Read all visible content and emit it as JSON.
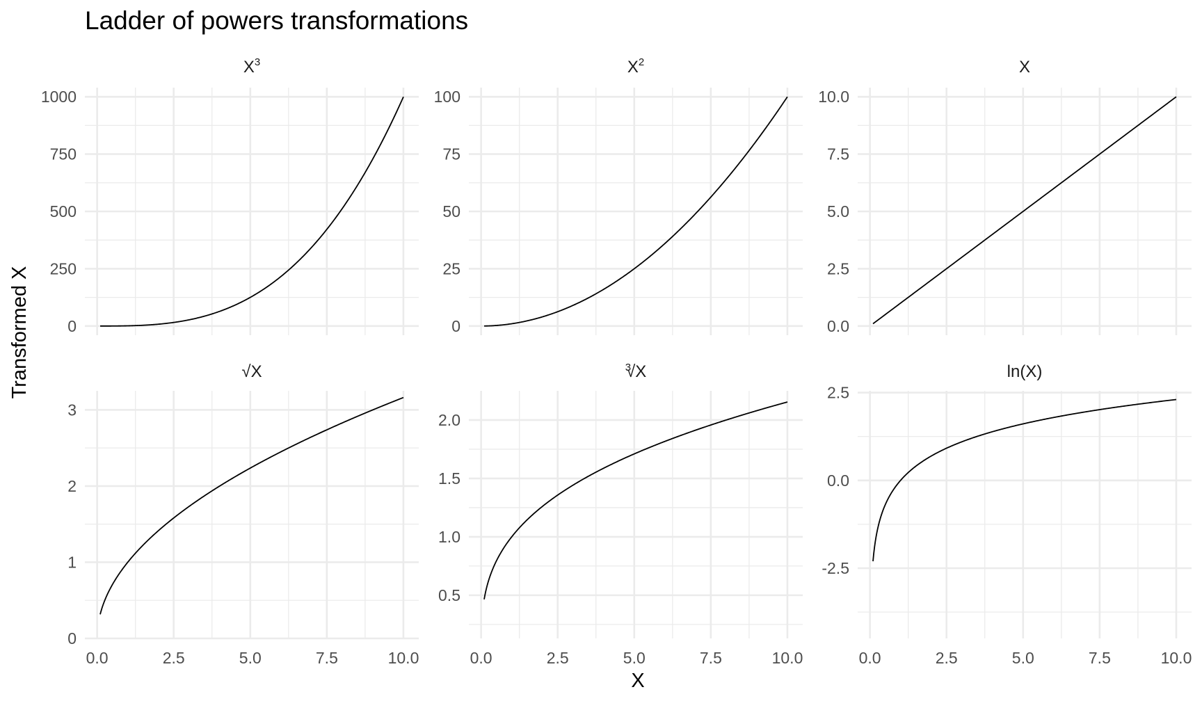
{
  "chart_data": {
    "type": "line",
    "title": "Ladder of powers transformations",
    "xlabel": "X",
    "ylabel": "Transformed X",
    "grid": true,
    "legend": "none",
    "line_color": "#000000",
    "x_range": [
      0.1,
      10
    ],
    "x_ticks": [
      0.0,
      2.5,
      5.0,
      7.5,
      10.0
    ],
    "x_tick_labels": [
      "0.0",
      "2.5",
      "5.0",
      "7.5",
      "10.0"
    ],
    "panels": [
      {
        "label": "X3",
        "label_main": "X",
        "label_sup": "3",
        "transform": "cube",
        "ylim": [
          -40,
          1040
        ],
        "yticks": [
          0,
          250,
          500,
          750,
          1000
        ],
        "ytick_labels": [
          "0",
          "250",
          "500",
          "750",
          "1000"
        ],
        "x": [
          0.1,
          1,
          2,
          3,
          4,
          5,
          6,
          7,
          8,
          9,
          10
        ],
        "y": [
          0.001,
          1,
          8,
          27,
          64,
          125,
          216,
          343,
          512,
          729,
          1000
        ]
      },
      {
        "label": "X2",
        "label_main": "X",
        "label_sup": "2",
        "transform": "square",
        "ylim": [
          -4,
          104
        ],
        "yticks": [
          0,
          25,
          50,
          75,
          100
        ],
        "ytick_labels": [
          "0",
          "25",
          "50",
          "75",
          "100"
        ],
        "x": [
          0.1,
          1,
          2,
          3,
          4,
          5,
          6,
          7,
          8,
          9,
          10
        ],
        "y": [
          0.01,
          1,
          4,
          9,
          16,
          25,
          36,
          49,
          64,
          81,
          100
        ]
      },
      {
        "label": "X",
        "label_main": "X",
        "label_sup": "",
        "transform": "identity",
        "ylim": [
          -0.4,
          10.4
        ],
        "yticks": [
          0,
          2.5,
          5,
          7.5,
          10
        ],
        "ytick_labels": [
          "0.0",
          "2.5",
          "5.0",
          "7.5",
          "10.0"
        ],
        "x": [
          0.1,
          1,
          2,
          3,
          4,
          5,
          6,
          7,
          8,
          9,
          10
        ],
        "y": [
          0.1,
          1,
          2,
          3,
          4,
          5,
          6,
          7,
          8,
          9,
          10
        ]
      },
      {
        "label": "√X",
        "label_main": "√X",
        "label_sup": "",
        "transform": "sqrt",
        "ylim": [
          0,
          3.25
        ],
        "yticks": [
          0,
          1,
          2,
          3
        ],
        "ytick_labels": [
          "0",
          "1",
          "2",
          "3"
        ],
        "x": [
          0.1,
          0.5,
          1,
          2,
          3,
          4,
          5,
          6,
          7,
          8,
          9,
          10
        ],
        "y": [
          0.32,
          0.71,
          1.0,
          1.41,
          1.73,
          2.0,
          2.24,
          2.45,
          2.65,
          2.83,
          3.0,
          3.16
        ]
      },
      {
        "label": "∛X",
        "label_main": "√X",
        "label_sup": "3",
        "transform": "cuberoot",
        "ylim": [
          0.13,
          2.25
        ],
        "yticks": [
          0.5,
          1.0,
          1.5,
          2.0
        ],
        "ytick_labels": [
          "0.5",
          "1.0",
          "1.5",
          "2.0"
        ],
        "x": [
          0.1,
          0.5,
          1,
          2,
          3,
          4,
          5,
          6,
          7,
          8,
          9,
          10
        ],
        "y": [
          0.46,
          0.79,
          1.0,
          1.26,
          1.44,
          1.59,
          1.71,
          1.82,
          1.91,
          2.0,
          2.08,
          2.15
        ]
      },
      {
        "label": "ln(X)",
        "label_main": "ln(X)",
        "label_sup": "",
        "transform": "log",
        "ylim": [
          -4.5,
          2.55
        ],
        "yticks": [
          -2.5,
          0.0,
          2.5
        ],
        "ytick_labels": [
          "-2.5",
          "0.0",
          "2.5"
        ],
        "x": [
          0.1,
          0.5,
          1,
          2,
          3,
          4,
          5,
          6,
          7,
          8,
          9,
          10
        ],
        "y": [
          -2.3,
          -0.69,
          0.0,
          0.69,
          1.1,
          1.39,
          1.61,
          1.79,
          1.95,
          2.08,
          2.2,
          2.3
        ]
      }
    ]
  }
}
